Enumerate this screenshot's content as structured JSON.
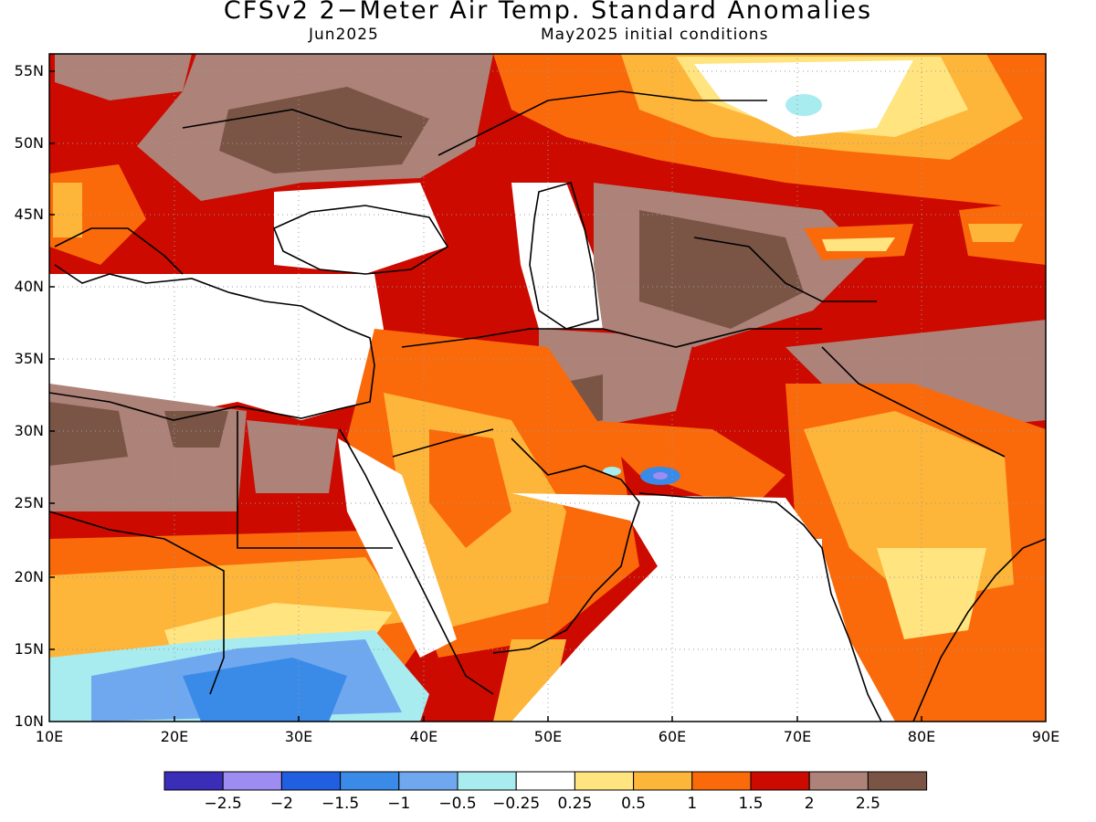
{
  "title": "CFSv2 2−Meter Air Temp. Standard Anomalies",
  "subtitle_left": "Jun2025",
  "subtitle_right": "May2025 initial conditions",
  "lat_ticks": [
    "55N",
    "50N",
    "45N",
    "40N",
    "35N",
    "30N",
    "25N",
    "20N",
    "15N",
    "10N"
  ],
  "lon_ticks": [
    "10E",
    "20E",
    "30E",
    "40E",
    "50E",
    "60E",
    "70E",
    "80E",
    "90E"
  ],
  "colorbar": {
    "colors": [
      "#3a2db7",
      "#9d8cf2",
      "#2060e0",
      "#3a8ae8",
      "#6fa8ee",
      "#a8ecf0",
      "#ffffff",
      "#ffe480",
      "#fdb53a",
      "#fa6a0a",
      "#cc0a00",
      "#ad8278",
      "#7a5546"
    ],
    "labels": [
      "−2.5",
      "−2",
      "−1.5",
      "−1",
      "−0.5",
      "−0.25",
      "0.25",
      "0.5",
      "1",
      "1.5",
      "2",
      "2.5"
    ]
  }
}
